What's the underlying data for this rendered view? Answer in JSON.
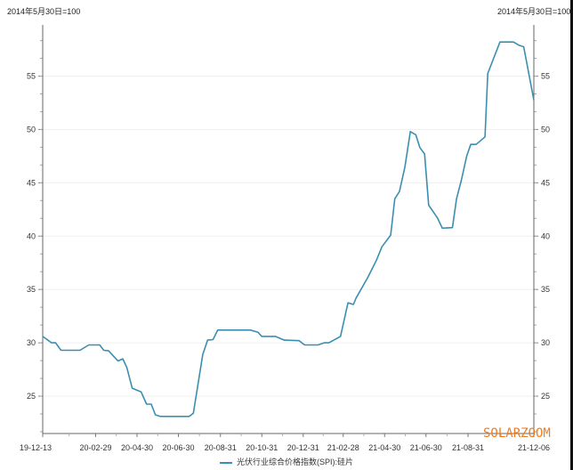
{
  "chart_data": {
    "type": "line",
    "title": "",
    "unit_label_left": "2014年5月30日=100",
    "unit_label_right": "2014年5月30日=100",
    "xlabel": "",
    "ylabel": "",
    "ylim": [
      21.5,
      59.8
    ],
    "yticks": [
      25,
      30,
      35,
      40,
      45,
      50,
      55
    ],
    "xlim": [
      "2019-12-13",
      "2021-12-06"
    ],
    "xtick_labels": [
      "19-12-13",
      "20-02-29",
      "20-04-30",
      "20-06-30",
      "20-08-31",
      "20-10-31",
      "20-12-31",
      "21-02-28",
      "21-04-30",
      "21-06-30",
      "21-08-31",
      "21-12-06"
    ],
    "xtick_dates": [
      "2019-12-13",
      "2020-02-29",
      "2020-04-30",
      "2020-06-30",
      "2020-08-31",
      "2020-10-31",
      "2020-12-31",
      "2021-02-28",
      "2021-04-30",
      "2021-06-30",
      "2021-08-31",
      "2021-12-06"
    ],
    "grid": "horizontal",
    "legend_position": "bottom",
    "series": [
      {
        "name": "光伏行业综合价格指数(SPI):硅片",
        "color": "#3a8fb0",
        "x": [
          "2019-12-13",
          "2019-12-26",
          "2020-01-01",
          "2020-01-09",
          "2020-02-06",
          "2020-02-19",
          "2020-03-06",
          "2020-03-12",
          "2020-03-19",
          "2020-04-02",
          "2020-04-09",
          "2020-04-15",
          "2020-04-23",
          "2020-05-06",
          "2020-05-14",
          "2020-05-21",
          "2020-05-27",
          "2020-06-03",
          "2020-07-16",
          "2020-07-22",
          "2020-08-05",
          "2020-08-12",
          "2020-08-20",
          "2020-08-27",
          "2020-10-14",
          "2020-10-25",
          "2020-10-31",
          "2020-11-20",
          "2020-12-03",
          "2020-12-25",
          "2021-01-02",
          "2021-01-22",
          "2021-01-31",
          "2021-02-07",
          "2021-02-24",
          "2021-03-07",
          "2021-03-15",
          "2021-03-19",
          "2021-04-05",
          "2021-04-18",
          "2021-04-26",
          "2021-05-09",
          "2021-05-15",
          "2021-05-22",
          "2021-05-30",
          "2021-06-07",
          "2021-06-15",
          "2021-06-21",
          "2021-06-28",
          "2021-07-04",
          "2021-07-11",
          "2021-07-17",
          "2021-07-24",
          "2021-08-08",
          "2021-08-14",
          "2021-08-21",
          "2021-08-29",
          "2021-09-04",
          "2021-09-12",
          "2021-09-25",
          "2021-09-29",
          "2021-10-17",
          "2021-11-06",
          "2021-11-14",
          "2021-11-21",
          "2021-12-06"
        ],
        "values": [
          30.6,
          30.0,
          30.0,
          29.3,
          29.3,
          29.8,
          29.8,
          29.3,
          29.25,
          28.3,
          28.5,
          27.7,
          25.75,
          25.4,
          24.25,
          24.25,
          23.25,
          23.1,
          23.1,
          23.4,
          28.9,
          30.25,
          30.3,
          31.2,
          31.2,
          31.0,
          30.6,
          30.6,
          30.25,
          30.2,
          29.8,
          29.8,
          30.0,
          30.0,
          30.6,
          33.75,
          33.6,
          34.2,
          36.1,
          37.75,
          39.0,
          40.1,
          43.5,
          44.2,
          46.5,
          49.8,
          49.5,
          48.3,
          47.7,
          42.9,
          42.25,
          41.7,
          40.75,
          40.8,
          43.5,
          45.2,
          47.5,
          48.6,
          48.6,
          49.3,
          55.25,
          58.2,
          58.2,
          57.9,
          57.75,
          52.75
        ]
      }
    ]
  },
  "watermark": "SOLARZOOM"
}
